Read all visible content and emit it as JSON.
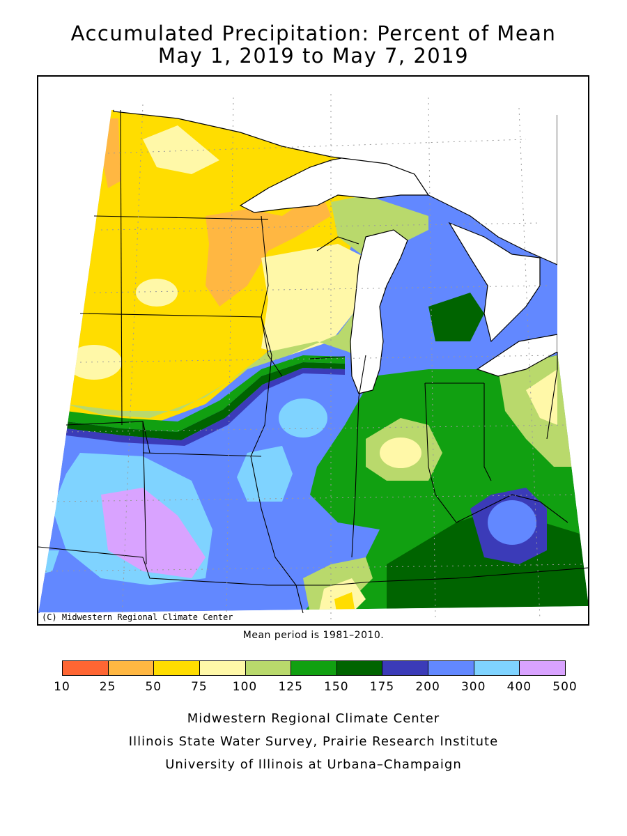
{
  "title": {
    "line1": "Accumulated Precipitation: Percent of Mean",
    "line2": "May 1, 2019 to May 7, 2019"
  },
  "map": {
    "copyright": "(C) Midwestern Regional Climate Center",
    "water_color": "#ffffff",
    "region_colors": {
      "c10_25": "#ff6633",
      "c25_50": "#ffb742",
      "c50_75": "#ffdd00",
      "c75_100": "#fff8a8",
      "c100_125": "#b9d96c",
      "c125_150": "#11a011",
      "c150_175": "#006400",
      "c175_200": "#3b3bb8",
      "c200_300": "#6288ff",
      "c300_400": "#7fd3ff",
      "c400_500": "#d9a3ff"
    }
  },
  "mean_period": "Mean period is 1981–2010.",
  "legend": {
    "colors": [
      "#ff6633",
      "#ffb742",
      "#ffdd00",
      "#fff8a8",
      "#b9d96c",
      "#11a011",
      "#006400",
      "#3b3bb8",
      "#6288ff",
      "#7fd3ff",
      "#d9a3ff"
    ],
    "ticks": [
      "10",
      "25",
      "50",
      "75",
      "100",
      "125",
      "150",
      "175",
      "200",
      "300",
      "400",
      "500"
    ]
  },
  "credits": {
    "line1": "Midwestern Regional Climate Center",
    "line2": "Illinois State Water Survey, Prairie Research Institute",
    "line3": "University of Illinois at Urbana–Champaign"
  }
}
